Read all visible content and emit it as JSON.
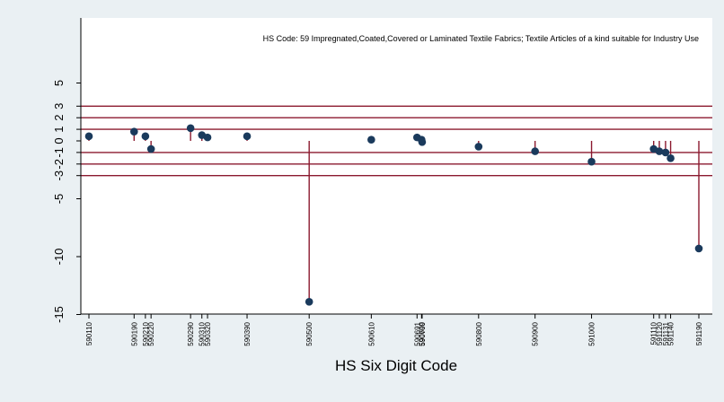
{
  "chart_data": {
    "type": "scatter",
    "title": "",
    "annotation": "HS Code: 59 Impregnated,Coated,Covered or Laminated Textile Fabrics; Textile Articles of a kind suitable for Industry Use",
    "xlabel": "HS Six Digit Code",
    "ylabel": "",
    "ylim": [
      -15.5,
      8.5
    ],
    "y_ticks": [
      5,
      3,
      2,
      1,
      0,
      -1,
      -2,
      -3,
      -5,
      -10,
      -15
    ],
    "hlines": [
      3,
      2,
      1,
      -1,
      -2,
      -3
    ],
    "grid": false,
    "colors": {
      "background": "#eaf0f3",
      "plot_bg": "#ffffff",
      "line": "#8b1a2f",
      "point": "#1a3a5c"
    },
    "x_tick_labels": [
      "590110",
      "590190",
      "590210",
      "590220",
      "590290",
      "590310",
      "590320",
      "590390",
      "590500",
      "590610",
      "590691",
      "590699",
      "590700",
      "590800",
      "590900",
      "591000",
      "591110",
      "591120",
      "591131",
      "591140",
      "591190"
    ],
    "points": [
      {
        "code": 590110,
        "value": 0.4
      },
      {
        "code": 590190,
        "value": 0.8
      },
      {
        "code": 590210,
        "value": 0.4
      },
      {
        "code": 590220,
        "value": -0.7
      },
      {
        "code": 590290,
        "value": 1.1
      },
      {
        "code": 590310,
        "value": 0.5
      },
      {
        "code": 590320,
        "value": 0.3
      },
      {
        "code": 590390,
        "value": 0.4
      },
      {
        "code": 590500,
        "value": -13.9
      },
      {
        "code": 590610,
        "value": 0.1
      },
      {
        "code": 590691,
        "value": 0.3
      },
      {
        "code": 590699,
        "value": 0.1
      },
      {
        "code": 590700,
        "value": -0.1
      },
      {
        "code": 590800,
        "value": -0.5
      },
      {
        "code": 590900,
        "value": -0.9
      },
      {
        "code": 591000,
        "value": -1.8
      },
      {
        "code": 591110,
        "value": -0.7
      },
      {
        "code": 591120,
        "value": -0.9
      },
      {
        "code": 591131,
        "value": -1.0
      },
      {
        "code": 591140,
        "value": -1.5
      },
      {
        "code": 591190,
        "value": -9.3
      }
    ]
  }
}
